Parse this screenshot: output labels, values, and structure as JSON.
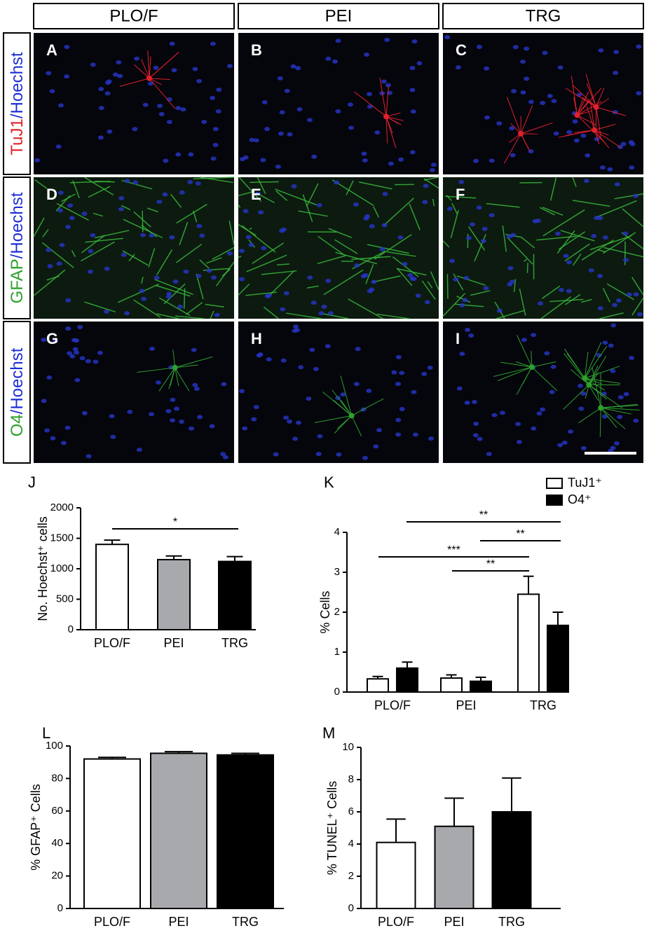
{
  "figure": {
    "columns": [
      "PLO/F",
      "PEI",
      "TRG"
    ],
    "rows": [
      {
        "marker": "TuJ1",
        "marker_color": "#e0202a",
        "stain": "/Hoechst",
        "stain_color": "#1c2dd6"
      },
      {
        "marker": "GFAP",
        "marker_color": "#2ca02c",
        "stain": "/Hoechst",
        "stain_color": "#1c2dd6"
      },
      {
        "marker": "O4",
        "marker_color": "#2ca02c",
        "stain": "/Hoechst",
        "stain_color": "#1c2dd6"
      }
    ],
    "panels": [
      "A",
      "B",
      "C",
      "D",
      "E",
      "F",
      "G",
      "H",
      "I"
    ]
  },
  "chart_data": [
    {
      "type": "bar",
      "panel": "J",
      "ylabel": "No. Hoechst⁺ cells",
      "categories": [
        "PLO/F",
        "PEI",
        "TRG"
      ],
      "values": [
        1400,
        1150,
        1120
      ],
      "errors": [
        70,
        60,
        80
      ],
      "colors": [
        "#ffffff",
        "#a7a9ac",
        "#000000"
      ],
      "ylim": [
        0,
        2000
      ],
      "yticks": [
        0,
        500,
        1000,
        1500,
        2000
      ],
      "annotations": [
        "*"
      ]
    },
    {
      "type": "grouped-bar",
      "panel": "K",
      "ylabel": "% Cells",
      "legend": "upper right",
      "categories": [
        "PLO/F",
        "PEI",
        "TRG"
      ],
      "series": [
        {
          "name": "TuJ1⁺",
          "color": "#ffffff",
          "values": [
            0.33,
            0.35,
            2.45
          ],
          "errors": [
            0.06,
            0.08,
            0.45
          ]
        },
        {
          "name": "O4⁺",
          "color": "#000000",
          "values": [
            0.6,
            0.27,
            1.67
          ],
          "errors": [
            0.15,
            0.1,
            0.33
          ]
        }
      ],
      "ylim": [
        0,
        4
      ],
      "yticks": [
        0,
        1,
        2,
        3,
        4
      ],
      "annotations": [
        "**",
        "**",
        "***",
        "**"
      ]
    },
    {
      "type": "bar",
      "panel": "L",
      "ylabel": "%  GFAP⁺ Cells",
      "categories": [
        "PLO/F",
        "PEI",
        "TRG"
      ],
      "values": [
        92,
        95.5,
        94.5
      ],
      "errors": [
        1,
        1,
        1
      ],
      "colors": [
        "#ffffff",
        "#a7a9ac",
        "#000000"
      ],
      "ylim": [
        0,
        100
      ],
      "yticks": [
        0,
        20,
        40,
        60,
        80,
        100
      ]
    },
    {
      "type": "bar",
      "panel": "M",
      "ylabel": "%  TUNEL⁺ Cells",
      "categories": [
        "PLO/F",
        "PEI",
        "TRG"
      ],
      "values": [
        4.1,
        5.1,
        6
      ],
      "errors": [
        1.45,
        1.75,
        2.1
      ],
      "colors": [
        "#ffffff",
        "#a7a9ac",
        "#000000"
      ],
      "ylim": [
        0,
        10
      ],
      "yticks": [
        0,
        2,
        4,
        6,
        8,
        10
      ]
    }
  ]
}
